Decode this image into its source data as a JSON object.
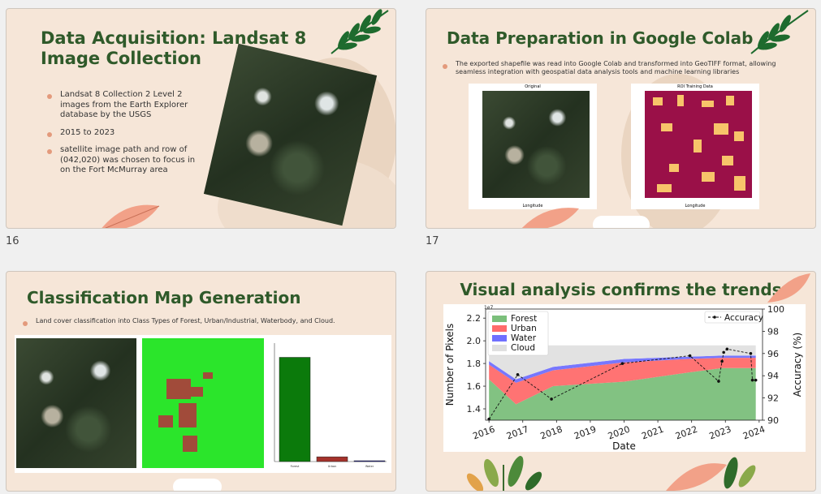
{
  "slides": [
    {
      "title_line1": "Data Acquisition: Landsat 8",
      "title_line2": "Image Collection",
      "bullets": [
        "Landsat 8 Collection 2 Level 2 images from the Earth Explorer database by the USGS",
        "2015 to 2023",
        "satellite image path and row of (042,020) was chosen to focus in on the Fort McMurray area"
      ],
      "page": "16"
    },
    {
      "title": "Data Preparation in Google Colab",
      "bullet": "The exported  shapefile was read into Google Colab and transformed into GeoTIFF format, allowing seamless integration with geospatial data analysis tools and machine learning libraries",
      "panel_left_title": "Original",
      "panel_right_title": "ROI Training Data",
      "axis_x": "Longitude",
      "axis_y": "Latitude",
      "page": "17"
    },
    {
      "title": "Classification Map Generation",
      "bullet": "Land cover classification into Class Types of Forest, Urban/Industrial, Waterbody, and Cloud."
    },
    {
      "title": "Visual analysis confirms the trends"
    }
  ],
  "colors": {
    "title": "#2f5a2a",
    "slide_bg": "#f6e6d8",
    "bullet_dot": "#e39a7c",
    "forest": "#7bbf7b",
    "urban": "#ff6b6b",
    "water": "#7070ff",
    "cloud": "#e0e0e0"
  },
  "chart_data": {
    "type": "area",
    "x": [
      "2016",
      "2017",
      "2018",
      "2019",
      "2020",
      "2021",
      "2022",
      "2023",
      "2024"
    ],
    "xlabel": "Date",
    "ylabel": "Number of Pixels",
    "y_exponent": "1e7",
    "ylim": [
      1.3,
      2.28
    ],
    "y_ticks": [
      "1.4",
      "1.6",
      "1.8",
      "2.0",
      "2.2"
    ],
    "y2label": "Accuracy (%)",
    "y2lim": [
      90,
      100
    ],
    "y2_ticks": [
      "90",
      "92",
      "94",
      "96",
      "98",
      "100"
    ],
    "legend_position": "top-left",
    "dates": [
      2016.0,
      2016.8,
      2017.9,
      2020.0,
      2021.9,
      2022.9,
      2023.9
    ],
    "series": [
      {
        "name": "Forest",
        "values": [
          1.66,
          1.44,
          1.6,
          1.64,
          1.72,
          1.76,
          1.76
        ]
      },
      {
        "name": "Urban",
        "values": [
          1.79,
          1.63,
          1.74,
          1.81,
          1.84,
          1.85,
          1.85
        ]
      },
      {
        "name": "Water",
        "values": [
          1.82,
          1.66,
          1.77,
          1.84,
          1.86,
          1.87,
          1.87
        ]
      },
      {
        "name": "Cloud",
        "values": [
          1.96,
          1.96,
          1.96,
          1.96,
          1.96,
          1.96,
          1.96
        ]
      }
    ],
    "accuracy_legend": "Accuracy",
    "accuracy": {
      "x": [
        2016.0,
        2016.85,
        2017.85,
        2019.95,
        2021.95,
        2022.8,
        2022.9,
        2022.95,
        2023.05,
        2023.75,
        2023.8,
        2023.9
      ],
      "y": [
        90.1,
        94.1,
        91.9,
        95.1,
        95.8,
        93.5,
        95.3,
        96.1,
        96.4,
        96.0,
        93.6,
        93.6
      ]
    }
  },
  "class_chart": {
    "type": "bar",
    "categories": [
      "Forest",
      "Urban",
      "Water"
    ],
    "values": [
      0.88,
      0.04,
      0.005
    ]
  }
}
